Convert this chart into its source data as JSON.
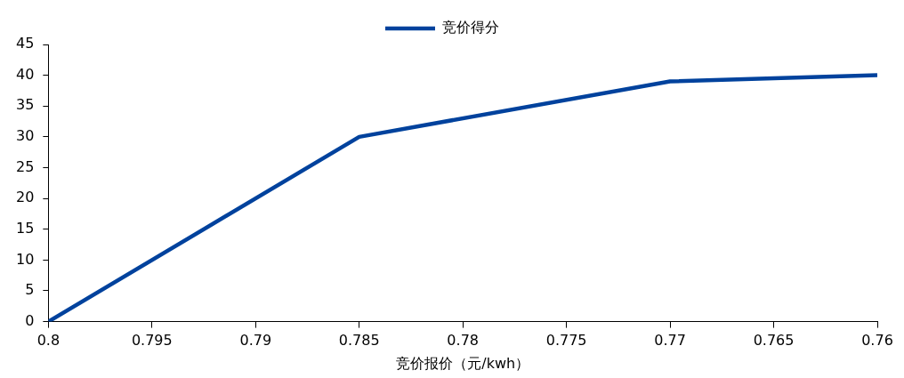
{
  "chart_data": {
    "type": "line",
    "xlabel": "竞价报价（元/kwh）",
    "x": [
      0.8,
      0.785,
      0.77,
      0.76
    ],
    "series": [
      {
        "name": "竞价得分",
        "color": "#00429d",
        "values": [
          0,
          30,
          39,
          40
        ]
      }
    ],
    "xlim": [
      0.8,
      0.76
    ],
    "xticks": [
      0.8,
      0.795,
      0.79,
      0.785,
      0.78,
      0.775,
      0.77,
      0.765,
      0.76
    ],
    "ylim": [
      0,
      45
    ],
    "yticks": [
      0,
      5,
      10,
      15,
      20,
      25,
      30,
      35,
      40,
      45
    ],
    "grid": false,
    "legend": "top",
    "marker": "none",
    "line_style": "solid"
  }
}
